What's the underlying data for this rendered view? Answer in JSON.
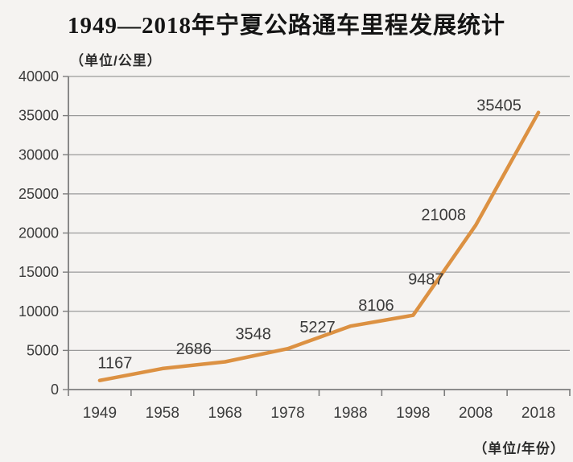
{
  "title": "1949—2018年宁夏公路通车里程发展统计",
  "y_unit_label": "（单位/公里）",
  "x_unit_label": "（单位/年份）",
  "chart_data": {
    "type": "line",
    "title": "1949—2018年宁夏公路通车里程发展统计",
    "categories": [
      "1949",
      "1958",
      "1968",
      "1978",
      "1988",
      "1998",
      "2008",
      "2018"
    ],
    "values": [
      1167,
      2686,
      3548,
      5227,
      8106,
      9487,
      21008,
      35405
    ],
    "xlabel": "（单位/年份）",
    "ylabel": "（单位/公里）",
    "ylim": [
      0,
      40000
    ],
    "y_ticks": [
      0,
      5000,
      10000,
      15000,
      20000,
      25000,
      30000,
      35000,
      40000
    ],
    "grid": true,
    "legend": "none",
    "data_labels_shown": true
  },
  "colors": {
    "line": "#DC9142",
    "grid": "#9a9a9a",
    "axis": "#7d7d7d",
    "tick_text": "#3c3c3c",
    "data_label_text": "#3a3a3a",
    "background": "#f5f3f1"
  }
}
